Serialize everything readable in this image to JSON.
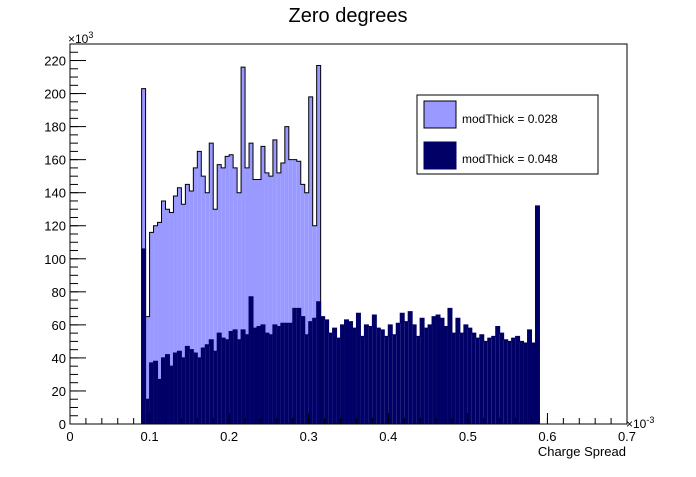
{
  "chart_data": {
    "type": "bar",
    "title": "Zero degrees",
    "xlabel": "Charge Spread",
    "ylabel": "",
    "x_multiplier": "×10",
    "x_exponent": "-3",
    "y_multiplier": "×10",
    "y_exponent": "3",
    "xlim": [
      0,
      0.7
    ],
    "ylim": [
      0,
      230
    ],
    "x_ticks": [
      0,
      0.1,
      0.2,
      0.3,
      0.4,
      0.5,
      0.6,
      0.7
    ],
    "x_tick_labels": [
      "0",
      "0.1",
      "0.2",
      "0.3",
      "0.4",
      "0.5",
      "0.6",
      "0.7"
    ],
    "y_ticks": [
      0,
      20,
      40,
      60,
      80,
      100,
      120,
      140,
      160,
      180,
      200,
      220
    ],
    "y_tick_labels": [
      "0",
      "20",
      "40",
      "60",
      "80",
      "100",
      "120",
      "140",
      "160",
      "180",
      "200",
      "220"
    ],
    "grid": false,
    "legend_position": "top-right",
    "series": [
      {
        "name": "modThick = 0.028",
        "color": "#9999ff",
        "edge_color": "#000000",
        "start": 0.09,
        "bin_width": 0.005,
        "values": [
          203,
          65,
          116,
          120,
          122,
          135,
          130,
          128,
          138,
          143,
          133,
          145,
          141,
          155,
          165,
          150,
          140,
          170,
          130,
          157,
          155,
          162,
          163,
          155,
          140,
          216,
          155,
          170,
          148,
          148,
          168,
          152,
          150,
          172,
          152,
          158,
          180,
          160,
          160,
          159,
          145,
          140,
          198,
          120,
          217
        ]
      },
      {
        "name": "modThick = 0.048",
        "color": "#000066",
        "edge_color": "#000066",
        "start": 0.09,
        "bin_width": 0.005,
        "values": [
          106,
          15,
          37,
          38,
          27,
          40,
          42,
          35,
          43,
          44,
          40,
          47,
          45,
          43,
          40,
          46,
          48,
          51,
          44,
          55,
          52,
          51,
          56,
          57,
          51,
          57,
          54,
          77,
          58,
          59,
          60,
          55,
          54,
          60,
          59,
          61,
          61,
          61,
          70,
          70,
          65,
          54,
          62,
          64,
          74,
          65,
          63,
          55,
          58,
          52,
          60,
          63,
          62,
          58,
          67,
          53,
          60,
          59,
          66,
          58,
          57,
          53,
          60,
          54,
          61,
          67,
          62,
          68,
          60,
          53,
          64,
          58,
          60,
          65,
          66,
          64,
          59,
          70,
          55,
          64,
          55,
          60,
          58,
          55,
          52,
          54,
          50,
          52,
          53,
          59,
          55,
          51,
          50,
          52,
          53,
          50,
          49,
          57,
          49,
          132
        ]
      }
    ]
  }
}
